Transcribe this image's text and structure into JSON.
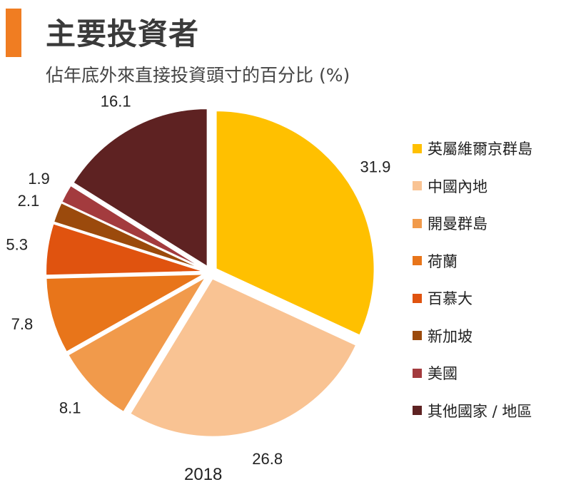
{
  "title": "主要投資者",
  "subtitle": "佔年底外來直接投資頭寸的百分比 (%)",
  "accent_color": "#F07D22",
  "year": "2018",
  "chart_data": {
    "type": "pie",
    "title": "主要投資者",
    "subtitle": "佔年底外來直接投資頭寸的百分比 (%)",
    "xlabel": "2018",
    "unit": "%",
    "start_angle_deg": 0,
    "direction": "clockwise",
    "legend_position": "right",
    "slices": [
      {
        "label": "英屬維爾京群島",
        "value": 31.9,
        "value_label": "31.9",
        "color": "#FFC000"
      },
      {
        "label": "中國內地",
        "value": 26.8,
        "value_label": "26.8",
        "color": "#F9C393"
      },
      {
        "label": "開曼群島",
        "value": 8.1,
        "value_label": "8.1",
        "color": "#F19A4B"
      },
      {
        "label": "荷蘭",
        "value": 7.8,
        "value_label": "7.8",
        "color": "#E8751A"
      },
      {
        "label": "百慕大",
        "value": 5.3,
        "value_label": "5.3",
        "color": "#E0530F"
      },
      {
        "label": "新加坡",
        "value": 2.1,
        "value_label": "2.1",
        "color": "#9B4A0C"
      },
      {
        "label": "美國",
        "value": 1.9,
        "value_label": "1.9",
        "color": "#A33B3E"
      },
      {
        "label": "其他國家 / 地區",
        "value": 16.1,
        "value_label": "16.1",
        "color": "#5E2222"
      }
    ]
  }
}
